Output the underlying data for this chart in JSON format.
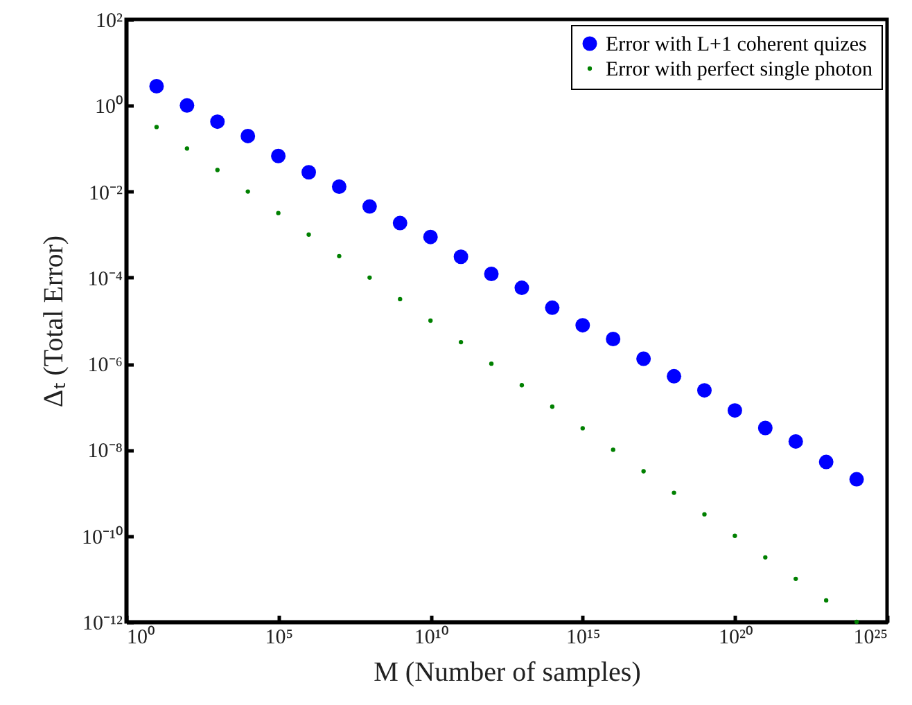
{
  "chart_data": {
    "type": "scatter",
    "xlabel": "M (Number of samples)",
    "ylabel": "Δₜ (Total Error)",
    "log": "xy",
    "grid": false,
    "legend": "top right",
    "marker": "circle",
    "x": [
      10.0,
      100.0,
      1000.0,
      10000.0,
      100000.0,
      1000000.0,
      10000000.0,
      100000000.0,
      1000000000.0,
      10000000000.0,
      100000000000.0,
      1000000000000.0,
      10000000000000.0,
      100000000000000.0,
      1000000000000000.0,
      1e+16,
      1e+17,
      1e+18,
      1e+19,
      1e+20,
      1e+21,
      1e+22,
      1e+23,
      1e+24
    ],
    "xlim": [
      1,
      1e+25
    ],
    "ylim": [
      1e-12,
      100
    ],
    "xticks": [
      {
        "value": 1,
        "label": "10⁰"
      },
      {
        "value": 100000.0,
        "label": "10⁵"
      },
      {
        "value": 10000000000.0,
        "label": "10¹⁰"
      },
      {
        "value": 1000000000000000.0,
        "label": "10¹⁵"
      },
      {
        "value": 1e+20,
        "label": "10²⁰"
      },
      {
        "value": 1e+25,
        "label": "10²⁵"
      }
    ],
    "yticks": [
      {
        "value": 1e-12,
        "label": "10⁻¹²"
      },
      {
        "value": 1e-10,
        "label": "10⁻¹⁰"
      },
      {
        "value": 1e-08,
        "label": "10⁻⁸"
      },
      {
        "value": 1e-06,
        "label": "10⁻⁶"
      },
      {
        "value": 0.0001,
        "label": "10⁻⁴"
      },
      {
        "value": 0.01,
        "label": "10⁻²"
      },
      {
        "value": 1,
        "label": "10⁰"
      },
      {
        "value": 100,
        "label": "10²"
      }
    ],
    "series": [
      {
        "name": "Error with L+1 coherent quizes",
        "color": "#0000ff",
        "values": [
          2.8,
          1,
          0.42,
          0.195,
          0.067,
          0.028,
          0.013,
          0.0045,
          0.00185,
          0.00088,
          0.000305,
          0.000122,
          5.8e-05,
          2e-05,
          7.8e-06,
          3.75e-06,
          1.3e-06,
          5.1e-07,
          2.4e-07,
          8.2e-08,
          3.2e-08,
          1.56e-08,
          5.2e-09,
          2.06e-09
        ]
      },
      {
        "name": "Error with perfect single photon",
        "color": "#008000",
        "values": [
          0.316,
          0.1,
          0.0316,
          0.01,
          0.00316,
          0.001,
          0.000316,
          0.0001,
          3.16e-05,
          1e-05,
          3.16e-06,
          1e-06,
          3.16e-07,
          1e-07,
          3.16e-08,
          1e-08,
          3.16e-09,
          1e-09,
          3.16e-10,
          1e-10,
          3.16e-11,
          1e-11,
          3.16e-12,
          1e-12
        ]
      }
    ]
  }
}
